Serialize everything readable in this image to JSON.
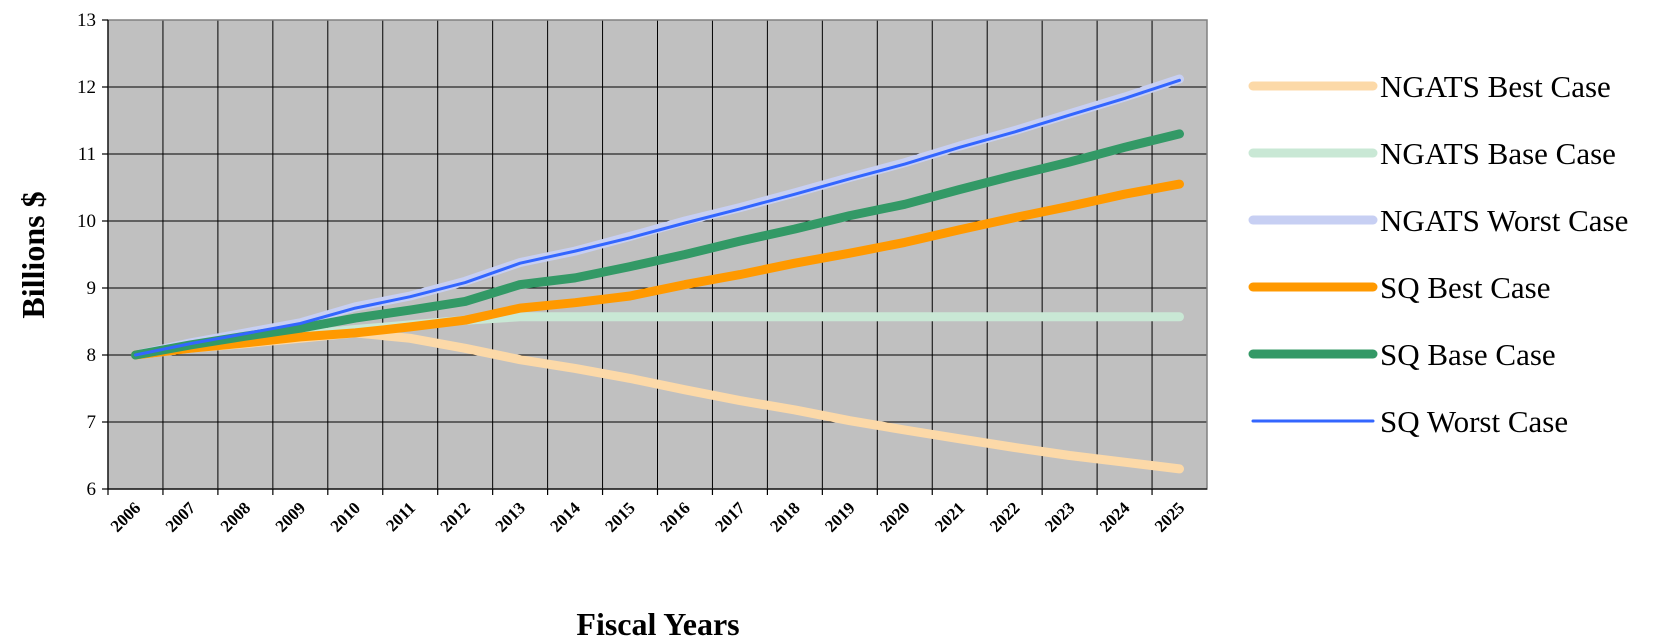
{
  "chart_data": {
    "type": "line",
    "xlabel": "Fiscal Years",
    "ylabel": "Billions $",
    "ylim": [
      6,
      13
    ],
    "y_ticks": [
      6,
      7,
      8,
      9,
      10,
      11,
      12,
      13
    ],
    "grid": true,
    "legend_position": "right",
    "categories": [
      "2006",
      "2007",
      "2008",
      "2009",
      "2010",
      "2011",
      "2012",
      "2013",
      "2014",
      "2015",
      "2016",
      "2017",
      "2018",
      "2019",
      "2020",
      "2021",
      "2022",
      "2023",
      "2024",
      "2025"
    ],
    "series": [
      {
        "name": "NGATS Best Case",
        "color": "#FCD9A8",
        "style": "thick-light",
        "values": [
          8.0,
          8.1,
          8.17,
          8.25,
          8.33,
          8.25,
          8.1,
          7.93,
          7.8,
          7.65,
          7.48,
          7.32,
          7.18,
          7.02,
          6.88,
          6.75,
          6.62,
          6.5,
          6.4,
          6.3
        ]
      },
      {
        "name": "NGATS Base Case",
        "color": "#C9E8D5",
        "style": "thick-light",
        "values": [
          8.0,
          8.1,
          8.2,
          8.3,
          8.38,
          8.45,
          8.52,
          8.57,
          8.57,
          8.57,
          8.57,
          8.57,
          8.57,
          8.57,
          8.57,
          8.57,
          8.57,
          8.57,
          8.57,
          8.57
        ]
      },
      {
        "name": "NGATS Worst Case",
        "color": "#C7CFF3",
        "style": "thick-light",
        "values": [
          8.0,
          8.18,
          8.33,
          8.48,
          8.72,
          8.88,
          9.1,
          9.38,
          9.55,
          9.77,
          10.0,
          10.2,
          10.42,
          10.65,
          10.87,
          11.12,
          11.35,
          11.6,
          11.85,
          12.12
        ]
      },
      {
        "name": "SQ Best Case",
        "color": "#FF9900",
        "style": "thick",
        "values": [
          8.0,
          8.1,
          8.18,
          8.27,
          8.33,
          8.42,
          8.52,
          8.7,
          8.78,
          8.88,
          9.05,
          9.2,
          9.37,
          9.52,
          9.68,
          9.87,
          10.05,
          10.22,
          10.4,
          10.55
        ]
      },
      {
        "name": "SQ Base Case",
        "color": "#339966",
        "style": "thick",
        "values": [
          8.0,
          8.15,
          8.28,
          8.4,
          8.55,
          8.67,
          8.8,
          9.05,
          9.15,
          9.32,
          9.5,
          9.7,
          9.88,
          10.08,
          10.25,
          10.47,
          10.68,
          10.88,
          11.1,
          11.3
        ]
      },
      {
        "name": "SQ Worst Case",
        "color": "#3366FF",
        "style": "thin",
        "values": [
          8.0,
          8.17,
          8.32,
          8.47,
          8.7,
          8.87,
          9.08,
          9.37,
          9.55,
          9.75,
          9.97,
          10.18,
          10.4,
          10.63,
          10.85,
          11.1,
          11.33,
          11.58,
          11.83,
          12.1
        ]
      }
    ]
  }
}
